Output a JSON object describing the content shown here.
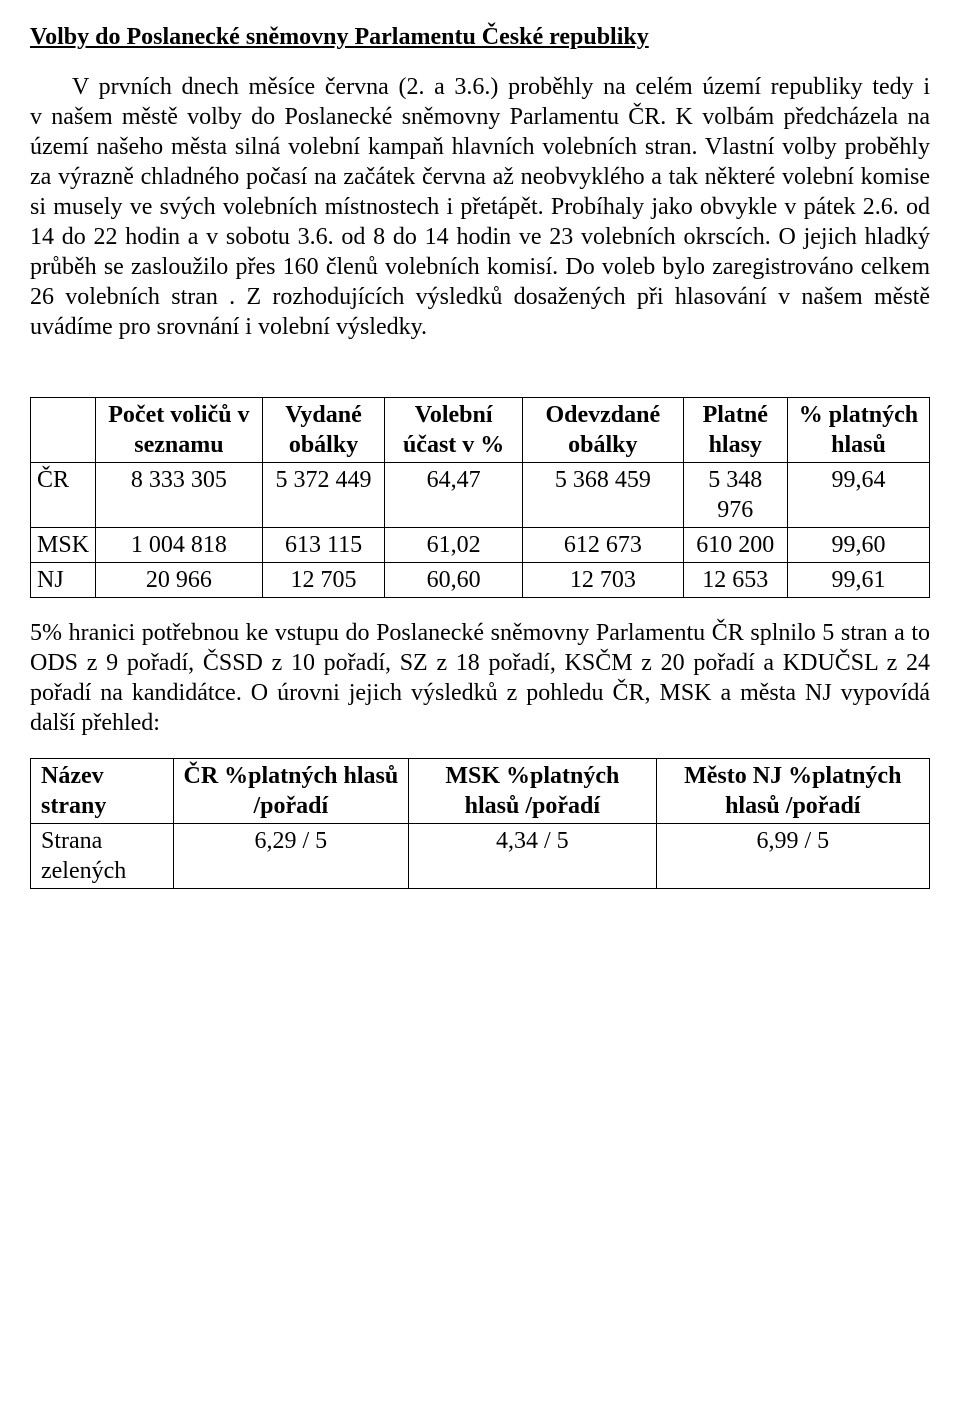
{
  "title": "Volby do Poslanecké sněmovny Parlamentu České republiky",
  "paragraph1": "V prvních dnech měsíce června (2. a 3.6.) proběhly na celém území republiky tedy i v našem městě volby do Poslanecké sněmovny Parlamentu ČR. K volbám předcházela na území našeho města silná volební kampaň hlavních volebních stran. Vlastní volby proběhly za výrazně chladného počasí na začátek června až neobvyklého  a tak některé volební komise si musely ve svých volebních místnostech i přetápět. Probíhaly jako obvykle v pátek 2.6. od 14 do 22 hodin a v sobotu 3.6. od 8 do 14 hodin ve 23 volebních okrscích. O jejich hladký průběh se zasloužilo přes 160 členů volebních  komisí. Do voleb bylo zaregistrováno celkem 26 volebních stran . Z rozhodujících výsledků dosažených  při hlasování v našem městě uvádíme pro srovnání i volební výsledky.",
  "table1": {
    "headers": [
      "",
      "Počet voličů v seznamu",
      "Vydané obálky",
      "Volební účast v %",
      "Odevzdané obálky",
      "Platné hlasy",
      "% platných hlasů"
    ],
    "rows": [
      [
        "ČR",
        "8 333 305",
        "5 372 449",
        "64,47",
        "5 368 459",
        "5 348 976",
        "99,64"
      ],
      [
        "MSK",
        "1 004 818",
        "613 115",
        "61,02",
        "612 673",
        "610 200",
        "99,60"
      ],
      [
        "NJ",
        "20 966",
        "12 705",
        "60,60",
        "12 703",
        "12 653",
        "99,61"
      ]
    ]
  },
  "paragraph2": "5% hranici potřebnou ke vstupu do Poslanecké sněmovny Parlamentu ČR splnilo 5 stran a to ODS z 9 pořadí, ČSSD z 10 pořadí, SZ z 18 pořadí, KSČM z 20 pořadí a KDUČSL z 24 pořadí na kandidátce. O úrovni jejich výsledků z pohledu ČR, MSK a města NJ vypovídá další přehled:",
  "table2": {
    "headers": [
      "Název strany",
      "ČR %platných hlasů /pořadí",
      "MSK %platných hlasů /pořadí",
      "Město NJ %platných hlasů /pořadí"
    ],
    "rows": [
      [
        "Strana zelených",
        "6,29 / 5",
        "4,34 / 5",
        "6,99 / 5"
      ]
    ]
  }
}
